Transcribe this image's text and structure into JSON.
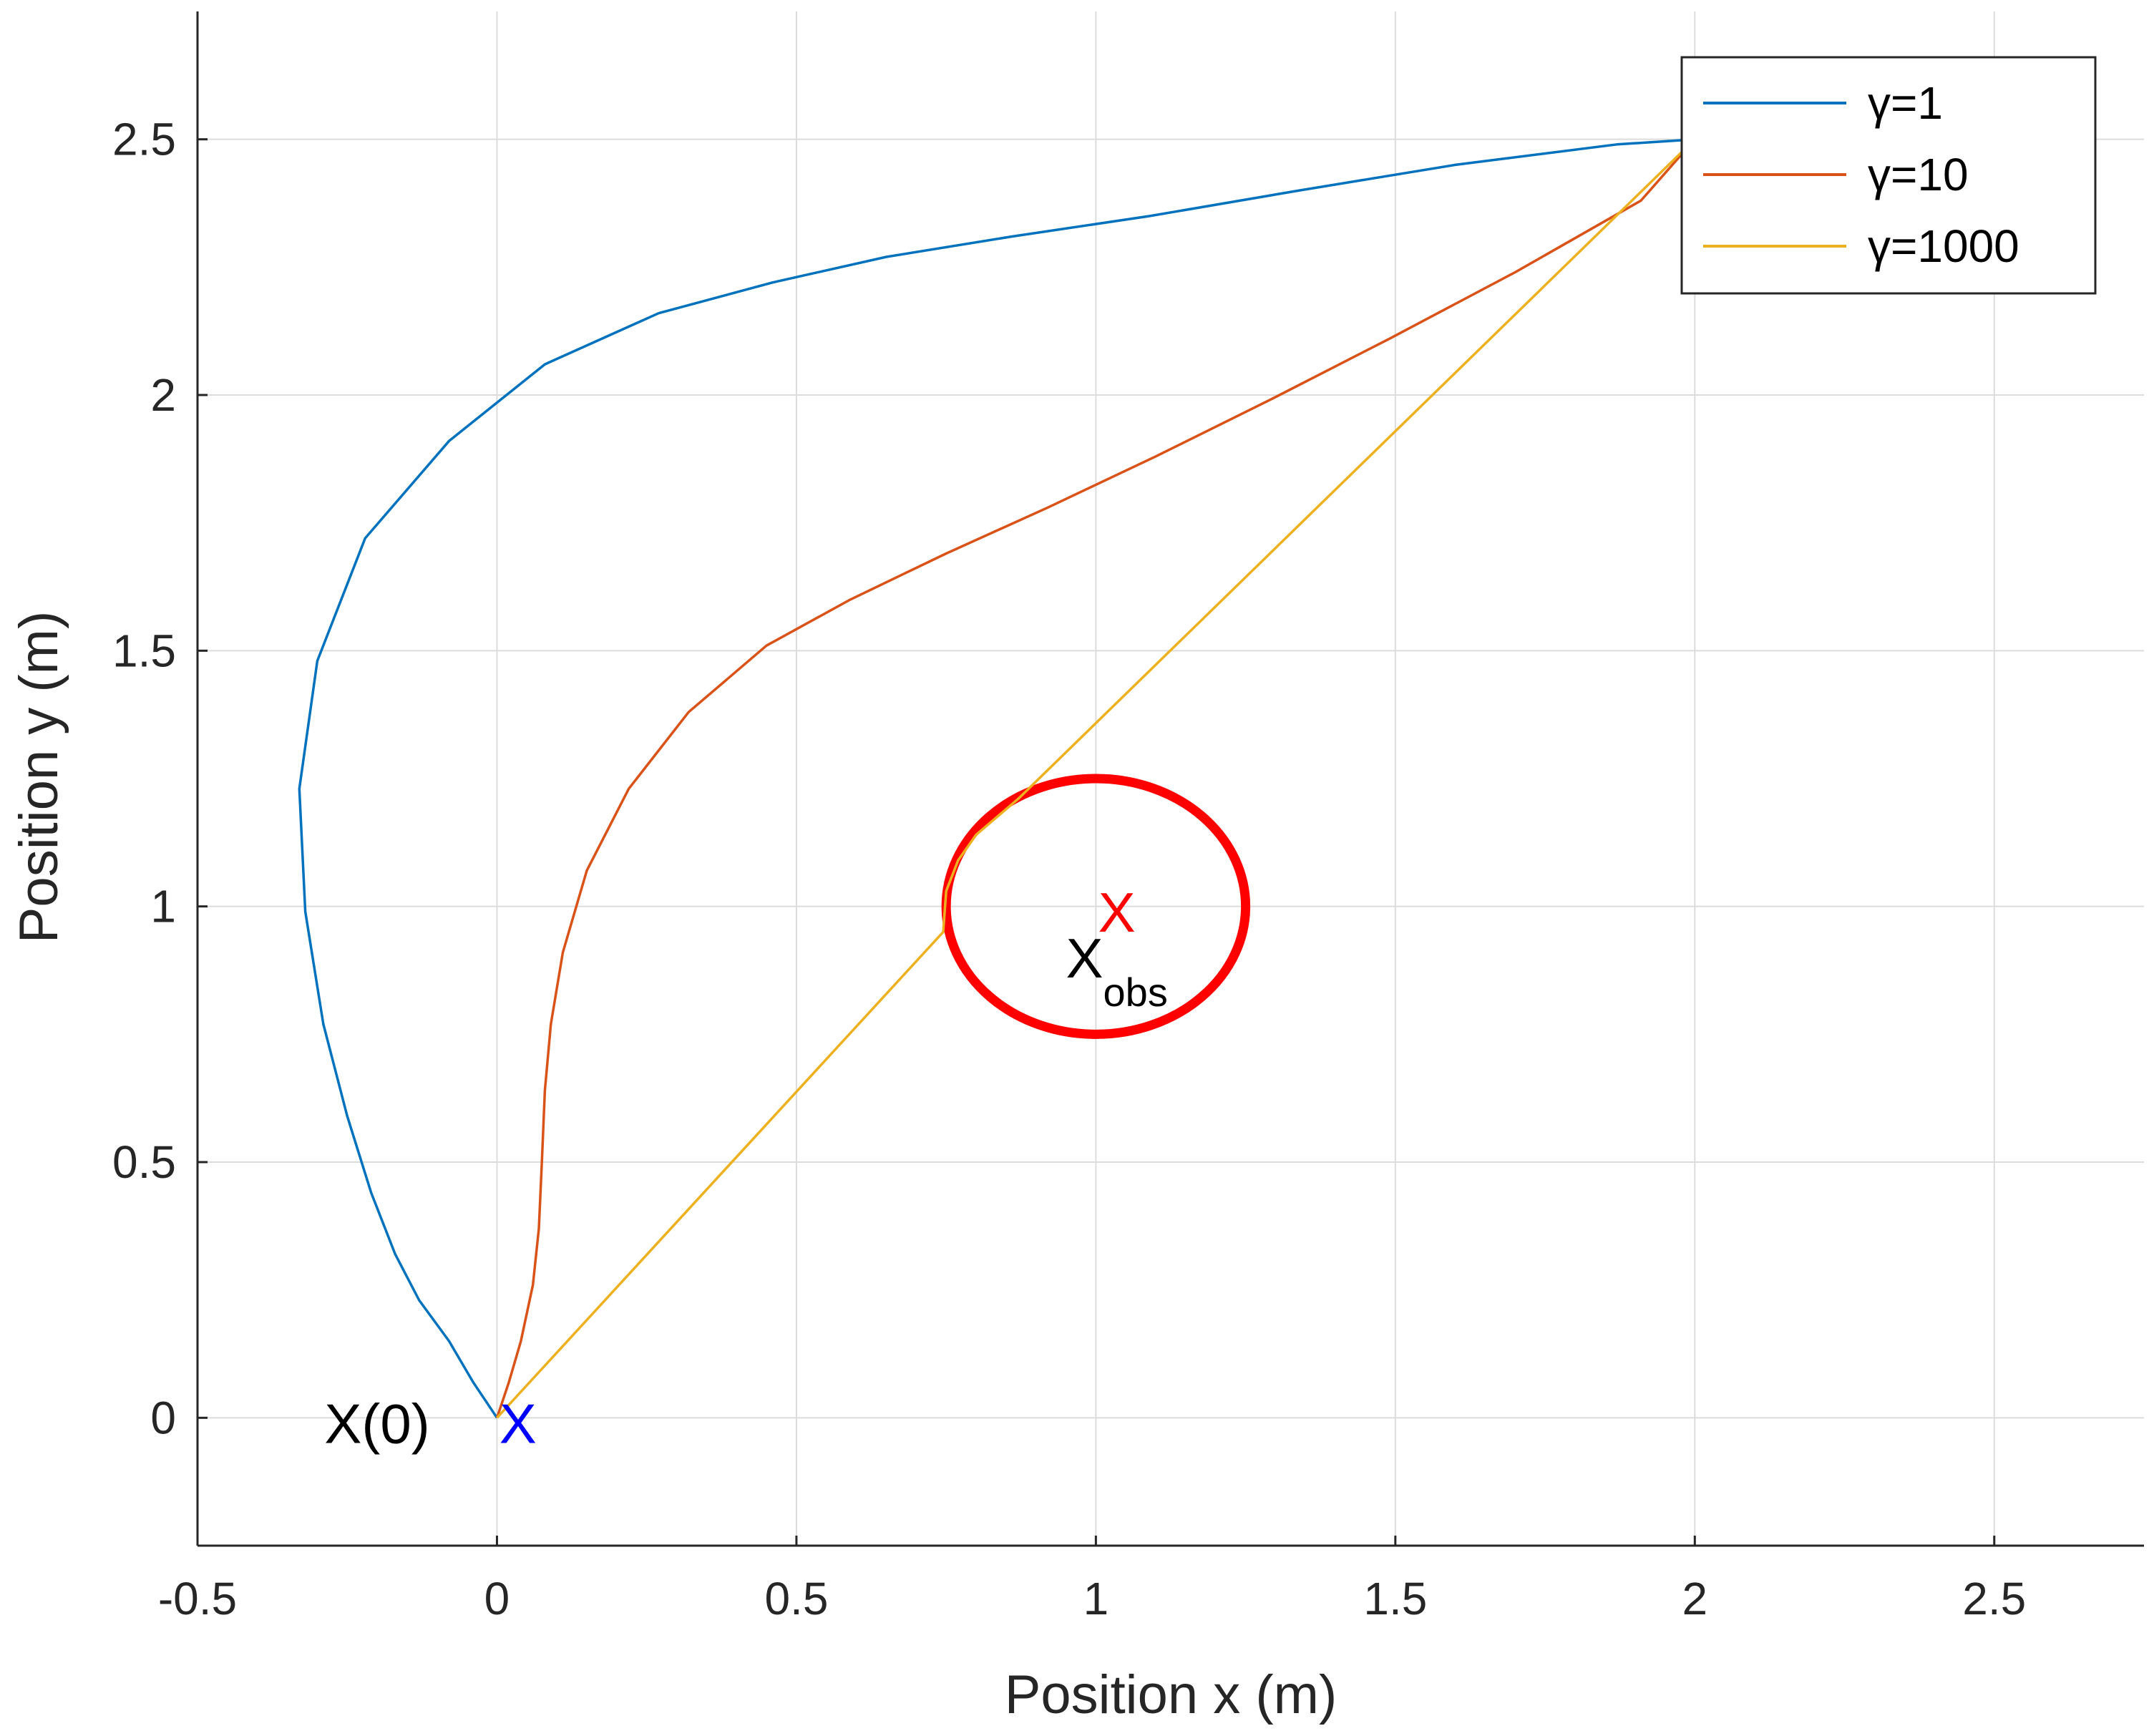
{
  "chart_data": {
    "type": "line",
    "xlabel": "Position x (m)",
    "ylabel": "Position y (m)",
    "xlim": [
      -0.5,
      2.75
    ],
    "ylim": [
      -0.25,
      2.75
    ],
    "xticks": [
      -0.5,
      0,
      0.5,
      1,
      1.5,
      2,
      2.5
    ],
    "xtick_labels": [
      "-0.5",
      "0",
      "0.5",
      "1",
      "1.5",
      "2",
      "2.5"
    ],
    "yticks": [
      0,
      0.5,
      1,
      1.5,
      2,
      2.5
    ],
    "ytick_labels": [
      "0",
      "0.5",
      "1",
      "1.5",
      "2",
      "2.5"
    ],
    "grid": true,
    "legend_position": "top-right",
    "series": [
      {
        "name": "γ=1",
        "color": "#0072BD",
        "x": [
          0,
          -0.04,
          -0.08,
          -0.13,
          -0.17,
          -0.21,
          -0.25,
          -0.29,
          -0.32,
          -0.33,
          -0.3,
          -0.22,
          -0.08,
          0.08,
          0.27,
          0.46,
          0.65,
          0.86,
          1.09,
          1.34,
          1.6,
          1.87,
          2.0
        ],
        "y": [
          0,
          0.07,
          0.15,
          0.23,
          0.32,
          0.44,
          0.59,
          0.77,
          0.99,
          1.23,
          1.48,
          1.72,
          1.91,
          2.06,
          2.16,
          2.22,
          2.27,
          2.31,
          2.35,
          2.4,
          2.45,
          2.49,
          2.5
        ]
      },
      {
        "name": "γ=10",
        "color": "#D95319",
        "x": [
          0,
          0.02,
          0.04,
          0.06,
          0.07,
          0.075,
          0.08,
          0.09,
          0.11,
          0.15,
          0.22,
          0.32,
          0.45,
          0.59,
          0.75,
          0.92,
          1.1,
          1.29,
          1.49,
          1.7,
          1.91,
          2.0
        ],
        "y": [
          0,
          0.07,
          0.15,
          0.26,
          0.37,
          0.5,
          0.64,
          0.77,
          0.91,
          1.07,
          1.23,
          1.38,
          1.51,
          1.6,
          1.69,
          1.78,
          1.88,
          1.99,
          2.11,
          2.24,
          2.38,
          2.5
        ]
      },
      {
        "name": "γ=1000",
        "color": "#EDB120",
        "x": [
          0,
          0.745,
          0.75,
          0.77,
          0.8,
          0.84,
          0.87,
          2.0
        ],
        "y": [
          0,
          0.95,
          1.03,
          1.09,
          1.14,
          1.18,
          1.21,
          2.5
        ]
      }
    ],
    "obstacle": {
      "center": [
        1,
        1
      ],
      "radius": 0.25,
      "color": "#FF0000"
    },
    "annotations": [
      {
        "text": "X(0)",
        "x": -0.2,
        "y": -0.01,
        "color": "#000000"
      },
      {
        "text": "X",
        "x": 0.035,
        "y": -0.01,
        "color": "#0000FF"
      },
      {
        "text": "X",
        "x": 1.035,
        "y": 0.99,
        "color": "#FF0000"
      },
      {
        "text": "X",
        "x": 1.035,
        "y": 0.9,
        "subscript": "obs",
        "color": "#000000"
      }
    ]
  }
}
